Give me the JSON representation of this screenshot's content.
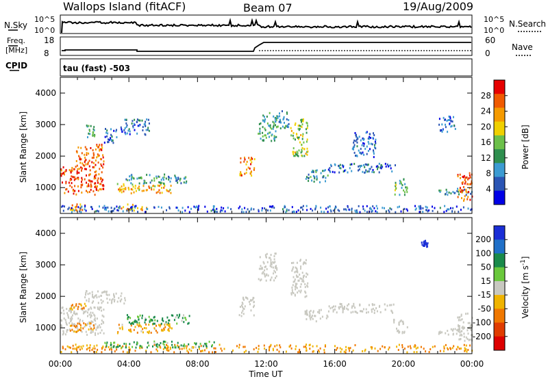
{
  "header": {
    "station": "Wallops Island (fitACF)",
    "beam": "Beam 07",
    "date": "19/Aug/2009"
  },
  "top_panels": {
    "nsky_label": "N.Sky",
    "nsky_ticks": [
      "10^5",
      "10^0"
    ],
    "nsearch_label": "N.Search",
    "nsearch_ticks": [
      "10^5",
      "10^0"
    ],
    "freq_label": "Freq.",
    "freq_unit": "[MHz]",
    "freq_ticks": [
      "18",
      "8"
    ],
    "nave_label": "Nave",
    "nave_ticks": [
      "60",
      "0"
    ],
    "cpid_label": "CPID",
    "cpid_value": "tau (fast) -503"
  },
  "colors": {
    "power_scale": [
      "#0000e6",
      "#2b55b4",
      "#3c9bd2",
      "#2f8f4f",
      "#6cc04a",
      "#f0d000",
      "#f59a00",
      "#f05a00",
      "#e60000"
    ],
    "velocity_scale": [
      "#1a2ed6",
      "#2070c8",
      "#1a8a4a",
      "#6ac83c",
      "#c8c8c0",
      "#f0b400",
      "#f07800",
      "#e03c00",
      "#dd0000"
    ],
    "ground_scatter": "#c8c8c0"
  },
  "chart_data": [
    {
      "type": "heatmap",
      "title": "Power",
      "xlabel": "Time UT",
      "ylabel": "Slant Range [km]",
      "x_ticks": [
        "00:00",
        "04:00",
        "08:00",
        "12:00",
        "16:00",
        "20:00",
        "00:00"
      ],
      "xlim_hours": [
        0,
        24
      ],
      "y_ticks": [
        1000,
        2000,
        3000,
        4000
      ],
      "ylim_km": [
        180,
        4500
      ],
      "colorbar": {
        "label": "Power [dB]",
        "ticks": [
          "28",
          "24",
          "20",
          "16",
          "12",
          "8",
          "4"
        ],
        "range": [
          0,
          32
        ]
      },
      "echo_regions": [
        {
          "t": [
            0.0,
            2.5
          ],
          "r": [
            800,
            1700
          ],
          "level": 27
        },
        {
          "t": [
            0.9,
            2.5
          ],
          "r": [
            1700,
            2400
          ],
          "level": 26
        },
        {
          "t": [
            1.5,
            2.0
          ],
          "r": [
            2600,
            3000
          ],
          "level": 12
        },
        {
          "t": [
            2.5,
            3.3
          ],
          "r": [
            2400,
            2900
          ],
          "level": 8
        },
        {
          "t": [
            3.3,
            6.5
          ],
          "r": [
            850,
            1150
          ],
          "level": 22
        },
        {
          "t": [
            3.8,
            7.5
          ],
          "r": [
            1150,
            1450
          ],
          "level": 11
        },
        {
          "t": [
            3.5,
            5.2
          ],
          "r": [
            2700,
            3200
          ],
          "level": 7
        },
        {
          "t": [
            0.5,
            1.4
          ],
          "r": [
            300,
            500
          ],
          "level": 24
        },
        {
          "t": [
            3.5,
            5.0
          ],
          "r": [
            300,
            500
          ],
          "level": 22
        },
        {
          "t": [
            0.0,
            24.0
          ],
          "r": [
            250,
            450
          ],
          "level": 6
        },
        {
          "t": [
            10.4,
            11.3
          ],
          "r": [
            1400,
            2000
          ],
          "level": 24
        },
        {
          "t": [
            11.5,
            12.6
          ],
          "r": [
            2500,
            3400
          ],
          "level": 12
        },
        {
          "t": [
            12.4,
            13.3
          ],
          "r": [
            2900,
            3500
          ],
          "level": 10
        },
        {
          "t": [
            13.4,
            14.4
          ],
          "r": [
            2000,
            3200
          ],
          "level": 17
        },
        {
          "t": [
            14.2,
            15.6
          ],
          "r": [
            1200,
            1600
          ],
          "level": 10
        },
        {
          "t": [
            15.6,
            19.5
          ],
          "r": [
            1500,
            1800
          ],
          "level": 7
        },
        {
          "t": [
            17.0,
            18.4
          ],
          "r": [
            2000,
            2800
          ],
          "level": 6
        },
        {
          "t": [
            19.4,
            20.2
          ],
          "r": [
            800,
            1300
          ],
          "level": 14
        },
        {
          "t": [
            22.0,
            23.0
          ],
          "r": [
            2800,
            3300
          ],
          "level": 6
        },
        {
          "t": [
            22.0,
            24.0
          ],
          "r": [
            800,
            1000
          ],
          "level": 10
        },
        {
          "t": [
            23.1,
            24.0
          ],
          "r": [
            600,
            1500
          ],
          "level": 26
        }
      ]
    },
    {
      "type": "heatmap",
      "title": "Velocity",
      "xlabel": "Time UT",
      "ylabel": "Slant Range [km]",
      "x_ticks": [
        "00:00",
        "04:00",
        "08:00",
        "12:00",
        "16:00",
        "20:00",
        "00:00"
      ],
      "xlim_hours": [
        0,
        24
      ],
      "y_ticks": [
        1000,
        2000,
        3000,
        4000
      ],
      "ylim_km": [
        180,
        4500
      ],
      "colorbar": {
        "label": "Velocity [m s^-1]",
        "ticks": [
          "200",
          "100",
          "50",
          "15",
          "-15",
          "-50",
          "-100",
          "-200"
        ],
        "range": [
          -250,
          250
        ]
      },
      "echo_regions": [
        {
          "t": [
            0.0,
            2.5
          ],
          "r": [
            800,
            1700
          ],
          "velocity": 0
        },
        {
          "t": [
            1.4,
            3.8
          ],
          "r": [
            1800,
            2200
          ],
          "velocity": 0
        },
        {
          "t": [
            0.5,
            2.0
          ],
          "r": [
            900,
            1200
          ],
          "velocity": -60
        },
        {
          "t": [
            3.3,
            6.5
          ],
          "r": [
            850,
            1150
          ],
          "velocity": -40
        },
        {
          "t": [
            3.8,
            7.5
          ],
          "r": [
            1150,
            1450
          ],
          "velocity": 40
        },
        {
          "t": [
            0.5,
            1.5
          ],
          "r": [
            1600,
            1800
          ],
          "velocity": -60
        },
        {
          "t": [
            0.0,
            24.0
          ],
          "r": [
            250,
            500
          ],
          "velocity": -50
        },
        {
          "t": [
            2.5,
            9.0
          ],
          "r": [
            400,
            600
          ],
          "velocity": 40
        },
        {
          "t": [
            10.4,
            11.3
          ],
          "r": [
            1400,
            2000
          ],
          "velocity": 0
        },
        {
          "t": [
            11.5,
            12.6
          ],
          "r": [
            2500,
            3400
          ],
          "velocity": 0
        },
        {
          "t": [
            13.4,
            14.4
          ],
          "r": [
            2000,
            3200
          ],
          "velocity": 0
        },
        {
          "t": [
            14.2,
            15.6
          ],
          "r": [
            1200,
            1600
          ],
          "velocity": 0
        },
        {
          "t": [
            15.6,
            19.5
          ],
          "r": [
            1500,
            1800
          ],
          "velocity": 0
        },
        {
          "t": [
            19.4,
            20.2
          ],
          "r": [
            800,
            1300
          ],
          "velocity": 0
        },
        {
          "t": [
            21.0,
            21.4
          ],
          "r": [
            3600,
            3800
          ],
          "velocity": 200
        },
        {
          "t": [
            22.0,
            24.0
          ],
          "r": [
            800,
            1000
          ],
          "velocity": 0
        },
        {
          "t": [
            23.1,
            24.0
          ],
          "r": [
            600,
            1500
          ],
          "velocity": 0
        }
      ]
    }
  ]
}
